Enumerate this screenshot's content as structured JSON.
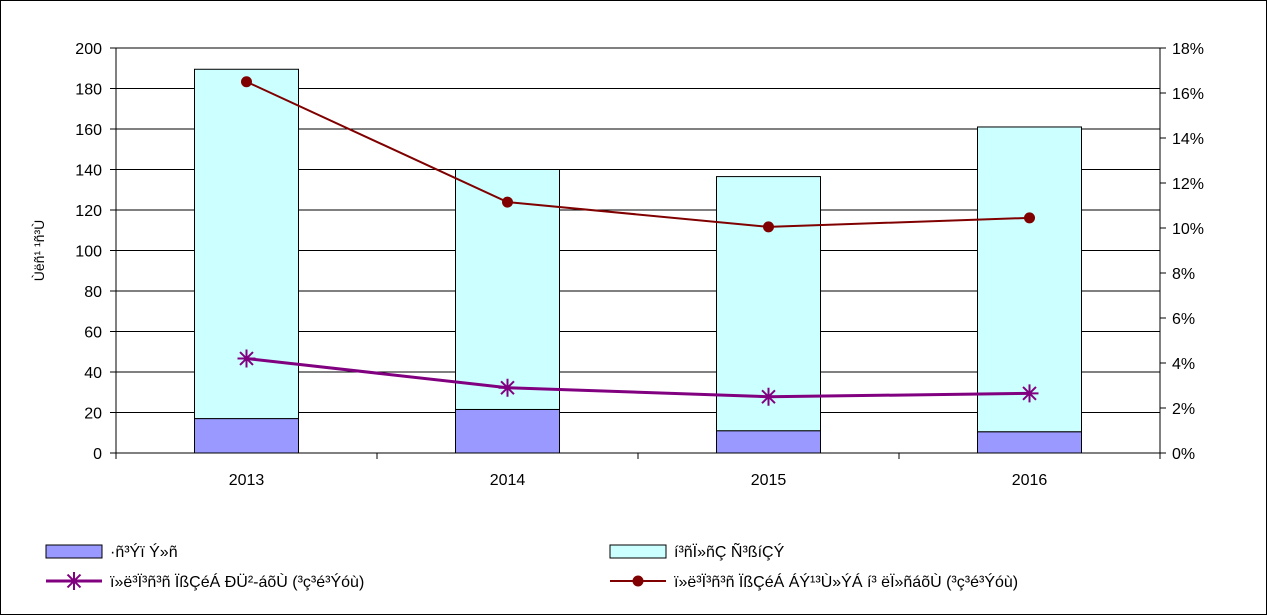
{
  "chart_data": {
    "type": "bar",
    "categories": [
      "2013",
      "2014",
      "2015",
      "2016"
    ],
    "ylabel": "Ùëñ¹ ¹ñ³Ù",
    "ylim": [
      0,
      200
    ],
    "y_ticks": [
      "0",
      "20",
      "40",
      "60",
      "80",
      "100",
      "120",
      "140",
      "160",
      "180",
      "200"
    ],
    "y2lim": [
      0,
      0.18
    ],
    "y2_ticks": [
      "0%",
      "2%",
      "4%",
      "6%",
      "8%",
      "10%",
      "12%",
      "14%",
      "16%",
      "18%"
    ],
    "grid": true,
    "legend_position": "bottom",
    "series": [
      {
        "name": "·ñ³Ýï Ý»ñ",
        "kind": "bar",
        "axis": "left",
        "stack": "total",
        "color": "#9999ff",
        "values": [
          17,
          21.5,
          11,
          10.5
        ]
      },
      {
        "name": "í³ñÏ»ñÇ Ñ³ßíÇÝ",
        "kind": "bar",
        "axis": "left",
        "stack": "total",
        "color": "#ccffff",
        "values": [
          172.5,
          118.5,
          125.5,
          150.5
        ]
      },
      {
        "name": "ï»ë³Ï³ñ³ñ ÏßÇéÁ ÐÜ²-áõÙ (³ç³é³Ýóù)",
        "kind": "line",
        "axis": "right",
        "color": "#800080",
        "marker": "asterisk",
        "values": [
          0.042,
          0.029,
          0.025,
          0.0265
        ]
      },
      {
        "name": "ï»ë³Ï³ñ³ñ ÏßÇéÁ ÁÝ¹³Ù»ÝÁ í³ ëÏ»ñáõÙ (³ç³é³Ýóù)",
        "kind": "line",
        "axis": "right",
        "color": "#800000",
        "marker": "circle",
        "values": [
          0.165,
          0.1115,
          0.1005,
          0.1045
        ]
      }
    ]
  }
}
